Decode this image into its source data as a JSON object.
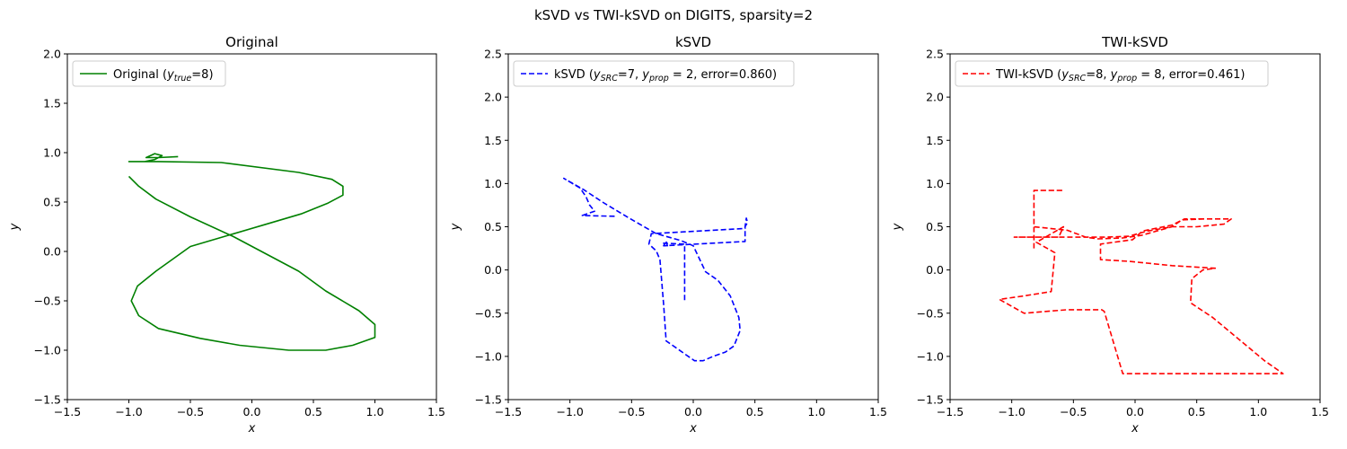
{
  "figure": {
    "suptitle": "kSVD vs TWI-kSVD on DIGITS, sparsity=2"
  },
  "chart_data": [
    {
      "type": "line",
      "title": "Original",
      "xlabel": "x",
      "ylabel": "y",
      "xlim": [
        -1.5,
        1.5
      ],
      "ylim": [
        -1.5,
        2.0
      ],
      "xticks": [
        "−1.5",
        "−1.0",
        "−0.5",
        "0.0",
        "0.5",
        "1.0",
        "1.5"
      ],
      "xtick_values": [
        -1.5,
        -1.0,
        -0.5,
        0.0,
        0.5,
        1.0,
        1.5
      ],
      "yticks": [
        "−1.5",
        "−1.0",
        "−0.5",
        "0.0",
        "0.5",
        "1.0",
        "1.5",
        "2.0"
      ],
      "ytick_values": [
        -1.5,
        -1.0,
        -0.5,
        0.0,
        0.5,
        1.0,
        1.5,
        2.0
      ],
      "legend_placement": "upper-left",
      "series": [
        {
          "legend": {
            "prefix": "Original (",
            "math1_base": "y",
            "math1_sub": "true",
            "mid1": "=8)",
            "math2_base": "",
            "math2_sub": "",
            "suffix": ""
          },
          "color": "#008000",
          "dash": "solid",
          "x": [
            -0.6,
            -0.76,
            -0.86,
            -0.79,
            -0.73,
            -0.79,
            -0.87,
            -1.0,
            -0.76,
            -0.25,
            0.38,
            0.65,
            0.74,
            0.74,
            0.62,
            0.4,
            0.1,
            -0.2,
            -0.5,
            -0.78,
            -0.93,
            -0.98,
            -0.92,
            -0.76,
            -0.42,
            -0.1,
            0.3,
            0.6,
            0.82,
            1.0,
            1.0,
            0.87,
            0.6,
            0.38,
            -0.15,
            -0.5,
            -0.78,
            -0.92,
            -1.0
          ],
          "y": [
            0.96,
            0.95,
            0.95,
            0.99,
            0.97,
            0.93,
            0.91,
            0.91,
            0.91,
            0.9,
            0.8,
            0.73,
            0.66,
            0.57,
            0.49,
            0.38,
            0.27,
            0.16,
            0.05,
            -0.2,
            -0.35,
            -0.5,
            -0.65,
            -0.78,
            -0.88,
            -0.95,
            -1.0,
            -1.0,
            -0.95,
            -0.87,
            -0.74,
            -0.6,
            -0.4,
            -0.2,
            0.15,
            0.35,
            0.53,
            0.66,
            0.76
          ]
        }
      ]
    },
    {
      "type": "line",
      "title": "kSVD",
      "xlabel": "x",
      "ylabel": "y",
      "xlim": [
        -1.5,
        1.5
      ],
      "ylim": [
        -1.5,
        2.5
      ],
      "xticks": [
        "−1.5",
        "−1.0",
        "−0.5",
        "0.0",
        "0.5",
        "1.0",
        "1.5"
      ],
      "xtick_values": [
        -1.5,
        -1.0,
        -0.5,
        0.0,
        0.5,
        1.0,
        1.5
      ],
      "yticks": [
        "−1.5",
        "−1.0",
        "−0.5",
        "0.0",
        "0.5",
        "1.0",
        "1.5",
        "2.0",
        "2.5"
      ],
      "ytick_values": [
        -1.5,
        -1.0,
        -0.5,
        0.0,
        0.5,
        1.0,
        1.5,
        2.0,
        2.5
      ],
      "legend_placement": "upper-left",
      "series": [
        {
          "legend": {
            "prefix": "kSVD (",
            "math1_base": "y",
            "math1_sub": "SRC",
            "mid1": "=7, ",
            "math2_base": "y",
            "math2_sub": "prop",
            "suffix": " = 2, error=0.860)"
          },
          "color": "#0000ff",
          "dash": "dashed",
          "x": [
            -0.07,
            -0.07,
            -0.24,
            -0.21,
            -0.21,
            -0.22,
            -0.24,
            0.42,
            0.42,
            0.44,
            0.43,
            0.42,
            0.42,
            -0.34,
            -0.36,
            -0.3,
            -0.27,
            -0.24,
            -0.22,
            0.01,
            0.08,
            0.16,
            0.26,
            0.33,
            0.38,
            0.37,
            0.3,
            0.2,
            0.1,
            0.0,
            -0.1,
            -0.3,
            -0.52,
            -0.73,
            -0.89,
            -1.05,
            -0.92,
            -0.87,
            -0.84,
            -0.8,
            -0.9,
            -0.62
          ],
          "y": [
            -0.35,
            0.3,
            0.31,
            0.28,
            0.28,
            0.33,
            0.28,
            0.33,
            0.5,
            0.55,
            0.6,
            0.5,
            0.48,
            0.42,
            0.3,
            0.22,
            0.12,
            -0.4,
            -0.82,
            -1.05,
            -1.05,
            -1.0,
            -0.95,
            -0.88,
            -0.7,
            -0.55,
            -0.3,
            -0.12,
            -0.02,
            0.28,
            0.34,
            0.42,
            0.6,
            0.78,
            0.93,
            1.06,
            0.95,
            0.85,
            0.75,
            0.68,
            0.63,
            0.62
          ]
        }
      ]
    },
    {
      "type": "line",
      "title": "TWI-kSVD",
      "xlabel": "x",
      "ylabel": "y",
      "xlim": [
        -1.5,
        1.5
      ],
      "ylim": [
        -1.5,
        2.5
      ],
      "xticks": [
        "−1.5",
        "−1.0",
        "−0.5",
        "0.0",
        "0.5",
        "1.0",
        "1.5"
      ],
      "xtick_values": [
        -1.5,
        -1.0,
        -0.5,
        0.0,
        0.5,
        1.0,
        1.5
      ],
      "yticks": [
        "−1.5",
        "−1.0",
        "−0.5",
        "0.0",
        "0.5",
        "1.0",
        "1.5",
        "2.0",
        "2.5"
      ],
      "ytick_values": [
        -1.5,
        -1.0,
        -0.5,
        0.0,
        0.5,
        1.0,
        1.5,
        2.0,
        2.5
      ],
      "legend_placement": "upper-left",
      "series": [
        {
          "legend": {
            "prefix": "TWI-kSVD (",
            "math1_base": "y",
            "math1_sub": "SRC",
            "mid1": "=8, ",
            "math2_base": "y",
            "math2_sub": "prop",
            "suffix": " = 8, error=0.461)"
          },
          "color": "#ff0000",
          "dash": "dashed",
          "x": [
            -0.82,
            -0.82,
            -0.82,
            -0.58,
            -0.82,
            -0.82,
            -0.55,
            -0.4,
            -0.3,
            -0.1,
            0.05,
            0.3,
            0.38,
            0.56,
            0.78,
            0.72,
            0.5,
            0.3,
            0.1,
            -0.05,
            -0.25,
            -0.5,
            -0.8,
            -0.98,
            -0.62,
            -0.58,
            -0.8,
            -0.65,
            -0.68,
            -0.9,
            -1.1,
            -0.9,
            -0.55,
            -0.27,
            -0.25,
            -0.1,
            0.6,
            1.0,
            1.2,
            1.05,
            0.63,
            0.45,
            0.46,
            0.55,
            0.65,
            0.3,
            -0.05,
            -0.28,
            -0.28,
            -0.02,
            0.06,
            0.3,
            0.4,
            0.56
          ],
          "y": [
            0.25,
            0.5,
            0.92,
            0.92,
            0.92,
            0.5,
            0.46,
            0.38,
            0.36,
            0.37,
            0.4,
            0.5,
            0.58,
            0.59,
            0.59,
            0.53,
            0.5,
            0.5,
            0.45,
            0.39,
            0.38,
            0.38,
            0.38,
            0.38,
            0.38,
            0.5,
            0.32,
            0.2,
            -0.25,
            -0.3,
            -0.34,
            -0.5,
            -0.46,
            -0.46,
            -0.48,
            -1.2,
            -1.2,
            -1.2,
            -1.2,
            -1.05,
            -0.55,
            -0.38,
            -0.1,
            0.0,
            0.02,
            0.05,
            0.1,
            0.12,
            0.3,
            0.35,
            0.45,
            0.52,
            0.59,
            0.59
          ]
        }
      ]
    }
  ]
}
